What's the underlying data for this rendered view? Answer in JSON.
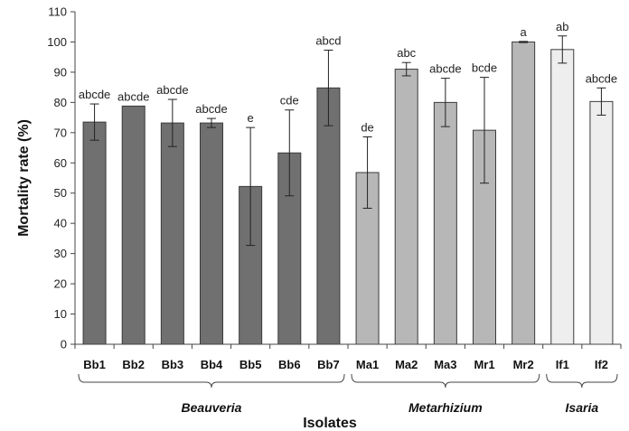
{
  "chart_data": {
    "type": "bar",
    "xlabel": "Isolates",
    "ylabel": "Mortality rate (%)",
    "ylim": [
      0,
      110
    ],
    "yticks": [
      0,
      10,
      20,
      30,
      40,
      50,
      60,
      70,
      80,
      90,
      100,
      110
    ],
    "grid": false,
    "categories": [
      "Bb1",
      "Bb2",
      "Bb3",
      "Bb4",
      "Bb5",
      "Bb6",
      "Bb7",
      "Ma1",
      "Ma2",
      "Ma3",
      "Mr1",
      "Mr2",
      "If1",
      "If2"
    ],
    "values": [
      73.5,
      78.8,
      73.2,
      73.2,
      52.2,
      63.3,
      84.8,
      56.8,
      91.0,
      80.0,
      70.8,
      100.0,
      97.5,
      80.3
    ],
    "errors": [
      6.0,
      0.0,
      7.8,
      1.5,
      19.5,
      14.2,
      12.5,
      11.8,
      2.2,
      8.0,
      17.5,
      0.2,
      4.5,
      4.5
    ],
    "significance": [
      "abcde",
      "abcde",
      "abcde",
      "abcde",
      "e",
      "cde",
      "abcd",
      "de",
      "abc",
      "abcde",
      "bcde",
      "a",
      "ab",
      "abcde"
    ],
    "groups": [
      {
        "label": "Beauveria",
        "start": 0,
        "end": 6,
        "color": "#707070"
      },
      {
        "label": "Metarhizium",
        "start": 7,
        "end": 11,
        "color": "#b7b7b7"
      },
      {
        "label": "Isaria",
        "start": 12,
        "end": 13,
        "color": "#eeeeee"
      }
    ]
  }
}
